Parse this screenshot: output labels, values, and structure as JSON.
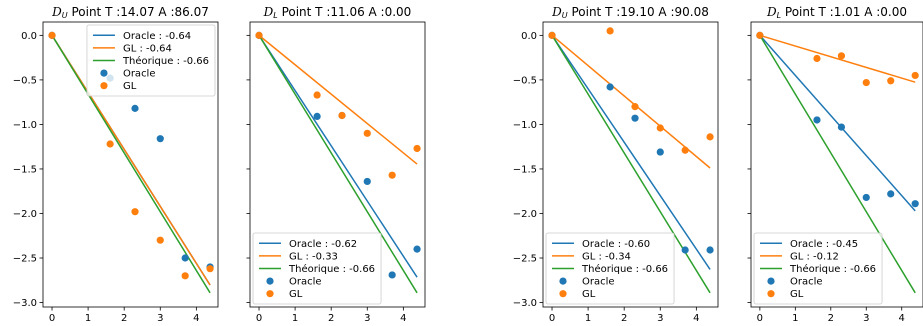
{
  "chart_data": [
    {
      "type": "scatter",
      "title_prefix": "D",
      "title_sub": "U",
      "title_rest": " Point T :14.07  A :86.07",
      "xlim": [
        -0.25,
        4.6
      ],
      "ylim": [
        -3.05,
        0.15
      ],
      "xticks": [
        0,
        1,
        2,
        3,
        4
      ],
      "yticks": [
        0.0,
        -0.5,
        -1.0,
        -1.5,
        -2.0,
        -2.5,
        -3.0
      ],
      "ytick_labels": [
        "0.0",
        "−0.5",
        "−1.0",
        "−1.5",
        "−2.0",
        "−2.5",
        "−3.0"
      ],
      "show_yticklabels": true,
      "legend_position": "top-right",
      "lines": [
        {
          "name": "Oracle : -0.64",
          "color": "#1f77b4",
          "slope": -0.64,
          "x": [
            0,
            4.38
          ]
        },
        {
          "name": "GL : -0.64",
          "color": "#ff7f0e",
          "slope": -0.64,
          "x": [
            0,
            4.38
          ]
        },
        {
          "name": "Théorique : -0.66",
          "color": "#2ca02c",
          "slope": -0.66,
          "x": [
            0,
            4.38
          ]
        }
      ],
      "scatter": [
        {
          "name": "Oracle",
          "color": "#1f77b4",
          "x": [
            0,
            1.61,
            2.3,
            3.0,
            3.69,
            4.38
          ],
          "y": [
            0,
            -0.48,
            -0.82,
            -1.16,
            -2.5,
            -2.6
          ]
        },
        {
          "name": "GL",
          "color": "#ff7f0e",
          "x": [
            0,
            1.61,
            2.3,
            3.0,
            3.69,
            4.38
          ],
          "y": [
            0,
            -1.22,
            -1.98,
            -2.3,
            -2.7,
            -2.62
          ]
        }
      ]
    },
    {
      "type": "scatter",
      "title_prefix": "D",
      "title_sub": "L",
      "title_rest": " Point T :11.06  A :0.00",
      "xlim": [
        -0.25,
        4.6
      ],
      "ylim": [
        -3.05,
        0.15
      ],
      "xticks": [
        0,
        1,
        2,
        3,
        4
      ],
      "yticks": [
        0.0,
        -0.5,
        -1.0,
        -1.5,
        -2.0,
        -2.5,
        -3.0
      ],
      "ytick_labels": [
        "0.0",
        "−0.5",
        "−1.0",
        "−1.5",
        "−2.0",
        "−2.5",
        "−3.0"
      ],
      "show_yticklabels": false,
      "legend_position": "bottom-left",
      "lines": [
        {
          "name": "Oracle : -0.62",
          "color": "#1f77b4",
          "slope": -0.62,
          "x": [
            0,
            4.38
          ]
        },
        {
          "name": "GL : -0.33",
          "color": "#ff7f0e",
          "slope": -0.33,
          "x": [
            0,
            4.38
          ]
        },
        {
          "name": "Théorique : -0.66",
          "color": "#2ca02c",
          "slope": -0.66,
          "x": [
            0,
            4.38
          ]
        }
      ],
      "scatter": [
        {
          "name": "Oracle",
          "color": "#1f77b4",
          "x": [
            0,
            1.61,
            2.3,
            3.0,
            3.69,
            4.38
          ],
          "y": [
            0,
            -0.91,
            -0.9,
            -1.64,
            -2.69,
            -2.4
          ]
        },
        {
          "name": "GL",
          "color": "#ff7f0e",
          "x": [
            0,
            1.61,
            2.3,
            3.0,
            3.69,
            4.38
          ],
          "y": [
            0,
            -0.67,
            -0.9,
            -1.1,
            -1.57,
            -1.27
          ]
        }
      ]
    },
    {
      "type": "scatter",
      "title_prefix": "D",
      "title_sub": "U",
      "title_rest": " Point T :19.10  A :90.08",
      "xlim": [
        -0.25,
        4.6
      ],
      "ylim": [
        -3.05,
        0.15
      ],
      "xticks": [
        0,
        1,
        2,
        3,
        4
      ],
      "yticks": [
        0.0,
        -0.5,
        -1.0,
        -1.5,
        -2.0,
        -2.5,
        -3.0
      ],
      "ytick_labels": [
        "0.0",
        "−0.5",
        "−1.0",
        "−1.5",
        "−2.0",
        "−2.5",
        "−3.0"
      ],
      "show_yticklabels": true,
      "legend_position": "bottom-left",
      "lines": [
        {
          "name": "Oracle : -0.60",
          "color": "#1f77b4",
          "slope": -0.6,
          "x": [
            0,
            4.38
          ]
        },
        {
          "name": "GL : -0.34",
          "color": "#ff7f0e",
          "slope": -0.34,
          "x": [
            0,
            4.38
          ]
        },
        {
          "name": "Théorique : -0.66",
          "color": "#2ca02c",
          "slope": -0.66,
          "x": [
            0,
            4.38
          ]
        }
      ],
      "scatter": [
        {
          "name": "Oracle",
          "color": "#1f77b4",
          "x": [
            0,
            1.61,
            2.3,
            3.0,
            3.69,
            4.38
          ],
          "y": [
            0,
            -0.58,
            -0.93,
            -1.31,
            -2.41,
            -2.41
          ]
        },
        {
          "name": "GL",
          "color": "#ff7f0e",
          "x": [
            0,
            1.61,
            2.3,
            3.0,
            3.69,
            4.38
          ],
          "y": [
            0,
            0.05,
            -0.8,
            -1.04,
            -1.29,
            -1.14
          ]
        }
      ]
    },
    {
      "type": "scatter",
      "title_prefix": "D",
      "title_sub": "L",
      "title_rest": " Point T :1.01  A :0.00",
      "xlim": [
        -0.25,
        4.6
      ],
      "ylim": [
        -3.05,
        0.15
      ],
      "xticks": [
        0,
        1,
        2,
        3,
        4
      ],
      "yticks": [
        0.0,
        -0.5,
        -1.0,
        -1.5,
        -2.0,
        -2.5,
        -3.0
      ],
      "ytick_labels": [
        "0.0",
        "−0.5",
        "−1.0",
        "−1.5",
        "−2.0",
        "−2.5",
        "−3.0"
      ],
      "show_yticklabels": false,
      "legend_position": "bottom-left",
      "lines": [
        {
          "name": "Oracle : -0.45",
          "color": "#1f77b4",
          "slope": -0.45,
          "x": [
            0,
            4.38
          ]
        },
        {
          "name": "GL : -0.12",
          "color": "#ff7f0e",
          "slope": -0.12,
          "x": [
            0,
            4.38
          ]
        },
        {
          "name": "Théorique : -0.66",
          "color": "#2ca02c",
          "slope": -0.66,
          "x": [
            0,
            4.38
          ]
        }
      ],
      "scatter": [
        {
          "name": "Oracle",
          "color": "#1f77b4",
          "x": [
            0,
            1.61,
            2.3,
            3.0,
            3.69,
            4.38
          ],
          "y": [
            0,
            -0.95,
            -1.03,
            -1.82,
            -1.78,
            -1.89
          ]
        },
        {
          "name": "GL",
          "color": "#ff7f0e",
          "x": [
            0,
            1.61,
            2.3,
            3.0,
            3.69,
            4.38
          ],
          "y": [
            0,
            -0.26,
            -0.23,
            -0.53,
            -0.51,
            -0.45
          ]
        }
      ]
    }
  ]
}
